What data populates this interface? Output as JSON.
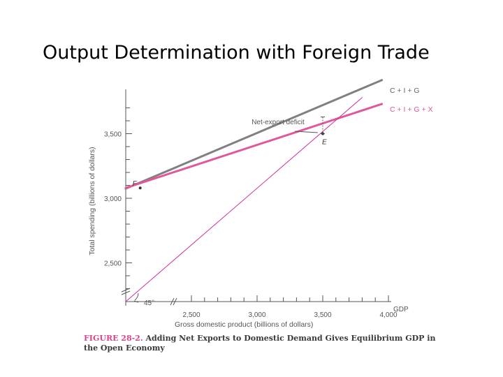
{
  "slide": {
    "title": "Output Determination with Foreign Trade"
  },
  "caption": {
    "figure_number": "FIGURE 28-2.",
    "text": "Adding Net Exports to Domestic Demand Gives Equilibrium GDP in the Open Economy"
  },
  "chart_data": {
    "type": "line",
    "xlabel": "Gross domestic product (billions of dollars)",
    "x_axis_end_label": "GDP",
    "ylabel": "Total spending (billions of dollars)",
    "xlim": [
      2000,
      4000
    ],
    "ylim": [
      2200,
      3800
    ],
    "x_ticks": [
      2500,
      3000,
      3500,
      4000
    ],
    "x_tick_labels": [
      "2,500",
      "3,000",
      "3,500",
      "4,000"
    ],
    "y_ticks": [
      2500,
      3000,
      3500
    ],
    "y_tick_labels": [
      "2,500",
      "3,000",
      "3,500"
    ],
    "grid": false,
    "series": [
      {
        "name": "C + I + G",
        "color": "#808080",
        "x": [
          2000,
          3950
        ],
        "y": [
          3075,
          3915
        ]
      },
      {
        "name": "C + I + G + X",
        "color": "#e0589c",
        "x": [
          2000,
          3950
        ],
        "y": [
          3080,
          3730
        ]
      },
      {
        "name": "45°",
        "color": "#cc3399",
        "x": [
          2000,
          3800
        ],
        "y": [
          2200,
          3780
        ]
      }
    ],
    "annotations": [
      {
        "label": "F",
        "x": 2110,
        "y": 3080
      },
      {
        "label": "E",
        "x": 3500,
        "y": 3500
      },
      {
        "label": "Net-export deficit",
        "x": 3500,
        "y": 3600
      },
      {
        "label": "45°"
      }
    ]
  }
}
